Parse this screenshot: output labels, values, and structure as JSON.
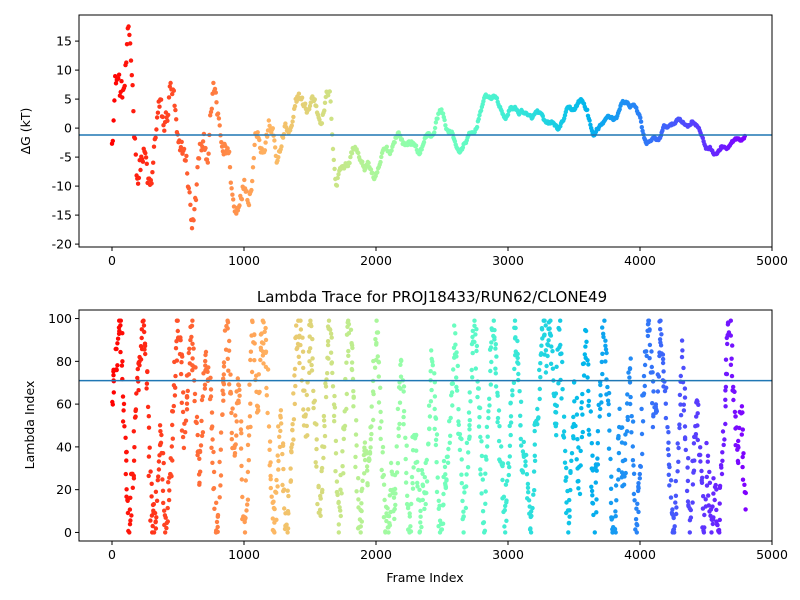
{
  "chart_data": [
    {
      "type": "scatter",
      "title": "",
      "xlabel": "",
      "ylabel": "ΔG (kT)",
      "xlim": [
        -250,
        5000
      ],
      "ylim": [
        -20.5,
        19.5
      ],
      "xticks": [
        0,
        1000,
        2000,
        3000,
        4000,
        5000
      ],
      "yticks": [
        -20,
        -15,
        -10,
        -5,
        0,
        5,
        10,
        15
      ],
      "grid": false,
      "colormap": "rainbow",
      "n_frames": 4800,
      "hline": {
        "y": -1.2,
        "color": "#1f77b4"
      },
      "trend": {
        "x": [
          0,
          150,
          300,
          450,
          600,
          750,
          900,
          1050,
          1200,
          1350,
          1500,
          1650,
          1700,
          1850,
          2000,
          2200,
          2400,
          2500,
          2600,
          2750,
          2850,
          2900,
          3000,
          3050,
          3150,
          3250,
          3350,
          3500,
          3600,
          3650,
          3700,
          3800,
          3950,
          4000,
          4050,
          4200,
          4300,
          4400,
          4450,
          4500,
          4600,
          4700,
          4800
        ],
        "y": [
          0,
          2,
          -2,
          -4,
          -6,
          -4,
          -6,
          -7,
          -2,
          2,
          1,
          8,
          -8,
          -6,
          -6,
          -3,
          -1,
          1,
          -3,
          0,
          5,
          4,
          3,
          5,
          1,
          1,
          1,
          3,
          3,
          -2,
          2,
          2,
          4,
          2,
          -2,
          -1,
          1,
          2,
          1,
          -4,
          -5,
          -2,
          -1
        ]
      },
      "amplitude": {
        "x": [
          0,
          150,
          300,
          700,
          1000,
          1300,
          1700,
          2200,
          2800,
          4800
        ],
        "y": [
          16,
          14,
          13,
          11,
          9,
          6,
          4,
          3,
          2,
          1.5
        ]
      }
    },
    {
      "type": "scatter",
      "title": "Lambda Trace for PROJ18433/RUN62/CLONE49",
      "xlabel": "Frame Index",
      "ylabel": "Lambda Index",
      "xlim": [
        -250,
        5000
      ],
      "ylim": [
        -4,
        104
      ],
      "xticks": [
        0,
        1000,
        2000,
        3000,
        4000,
        5000
      ],
      "yticks": [
        0,
        20,
        40,
        60,
        80,
        100
      ],
      "grid": false,
      "colormap": "rainbow",
      "n_frames": 4800,
      "hline": {
        "y": 71,
        "color": "#1f77b4"
      },
      "lambda_range": [
        0,
        99
      ]
    }
  ]
}
